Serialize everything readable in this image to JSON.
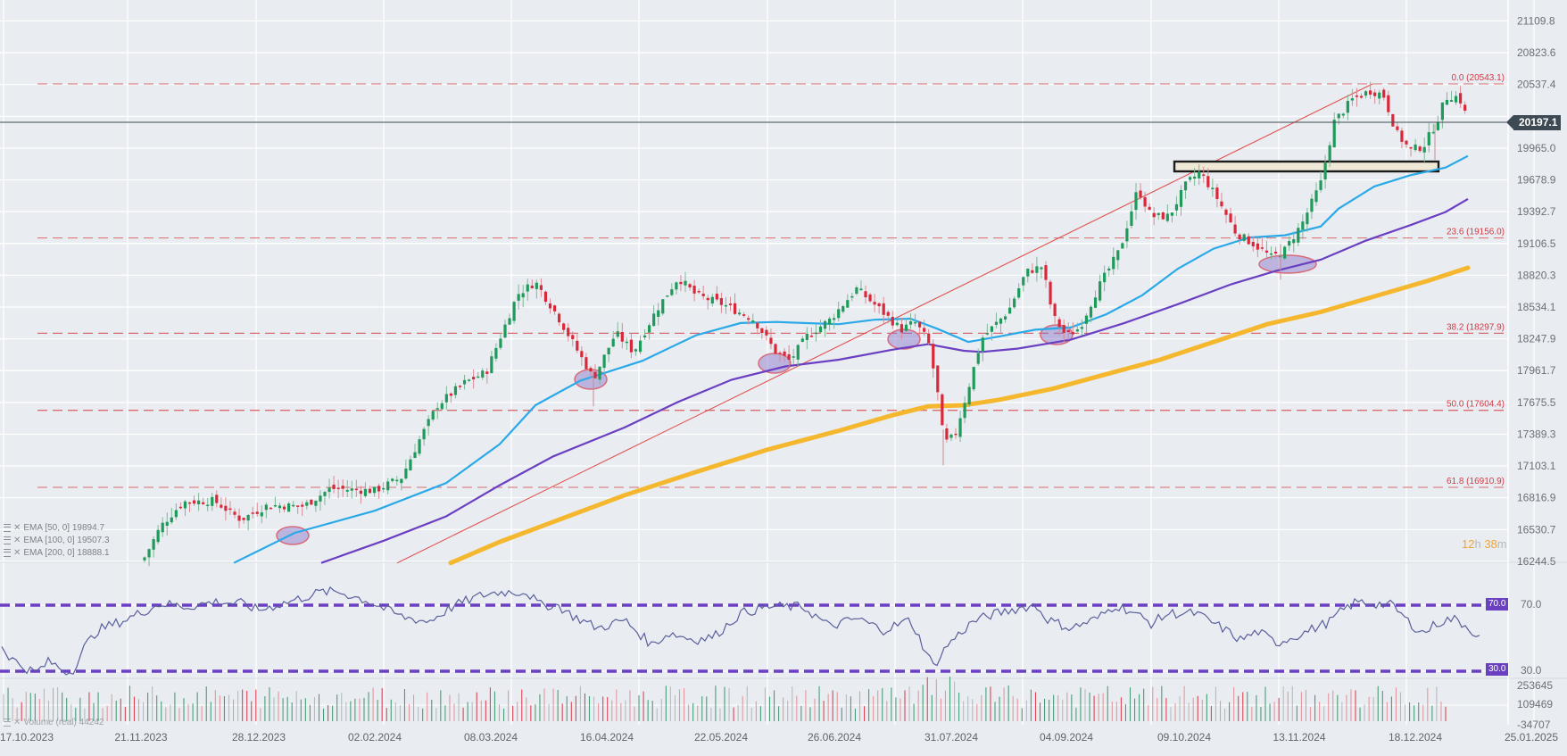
{
  "chart_data": {
    "type": "candlestick",
    "title": "",
    "panels": [
      "price",
      "rsi",
      "volume"
    ],
    "price_axis": {
      "ticks": [
        21109.8,
        20823.6,
        20537.4,
        20251.2,
        19965.0,
        19678.9,
        19392.7,
        19106.5,
        18820.3,
        18534.1,
        18247.9,
        17961.7,
        17675.5,
        17389.3,
        17103.1,
        16816.9,
        16530.7,
        16244.5
      ],
      "ylim": [
        16244.5,
        21109.8
      ]
    },
    "x_axis": {
      "ticks": [
        "17.10.2023",
        "21.11.2023",
        "28.12.2023",
        "02.02.2024",
        "08.03.2024",
        "16.04.2024",
        "22.05.2024",
        "26.06.2024",
        "31.07.2024",
        "04.09.2024",
        "09.10.2024",
        "13.11.2024",
        "18.12.2024",
        "25.01.2025"
      ],
      "xlim": [
        "17.10.2023",
        "25.01.2025"
      ]
    },
    "last_price": 20197.1,
    "fibonacci_levels": [
      {
        "level": "0.0",
        "price": 20543.1,
        "label": "0.0 (20543.1)"
      },
      {
        "level": "23.6",
        "price": 19156.0,
        "label": "23.6 (19156.0)"
      },
      {
        "level": "38.2",
        "price": 18297.9,
        "label": "38.2 (18297.9)"
      },
      {
        "level": "50.0",
        "price": 17604.4,
        "label": "50.0 (17604.4)"
      },
      {
        "level": "61.8",
        "price": 16910.9,
        "label": "61.8 (16910.9)"
      }
    ],
    "indicators": [
      {
        "name": "EMA [50, 0]",
        "value": 19894.7,
        "color": "#2aa9e8"
      },
      {
        "name": "EMA [100, 0]",
        "value": 19507.3,
        "color": "#6a3fc2"
      },
      {
        "name": "EMA [200, 0]",
        "value": 18888.1,
        "color": "#f5b72e"
      }
    ],
    "key_points": [
      {
        "date": "17.10.2023",
        "close_approx": 16300
      },
      {
        "date": "28.12.2023",
        "close_approx": 16700
      },
      {
        "date": "08.03.2024",
        "close_approx": 17950
      },
      {
        "date": "late 03.2024",
        "close_approx": 18800
      },
      {
        "date": "16.04.2024",
        "close_approx": 17850
      },
      {
        "date": "mid 05.2024",
        "close_approx": 18900
      },
      {
        "date": "early 06.2024",
        "close_approx": 18000
      },
      {
        "date": "mid 07.2024",
        "close_approx": 18750
      },
      {
        "date": "05.08.2024",
        "close_approx": 17300
      },
      {
        "date": "late 08.2024",
        "close_approx": 18950
      },
      {
        "date": "04.09.2024",
        "close_approx": 18250
      },
      {
        "date": "early 10.2024",
        "close_approx": 19650
      },
      {
        "date": "mid 11.2024",
        "close_approx": 18900
      },
      {
        "date": "early 12.2024",
        "close_approx": 20450
      },
      {
        "date": "mid 12.2024",
        "close_approx": 19900
      },
      {
        "date": "late 12.2024",
        "close_approx": 20543
      },
      {
        "date": "last",
        "close_approx": 20197.1
      }
    ],
    "annotations": [
      {
        "type": "trendline",
        "from": "late 12.2023",
        "to": "early 12.2024",
        "color": "#e0524f"
      },
      {
        "type": "rectangle",
        "label": "resistance-zone",
        "price_range": [
          19750,
          19860
        ]
      },
      {
        "type": "ellipse",
        "count": 6,
        "description": "EMA touch points"
      }
    ],
    "rsi": {
      "levels": [
        70.0,
        30.0
      ],
      "level_labels": [
        "70.0",
        "30.0"
      ]
    },
    "volume": {
      "label": "Volume (real)",
      "value": "44242",
      "ticks": [
        "253645",
        "109469",
        "-34707"
      ]
    },
    "legend_position": "bottom-left",
    "grid": true
  },
  "ui": {
    "last_price_tag": "20197.1",
    "countdown": {
      "hours": "12",
      "h": "h",
      "minutes": "38",
      "m": "m"
    },
    "rsi_tags": [
      "70.0",
      "30.0"
    ],
    "rsi_axis": [
      "70.0",
      "30.0"
    ],
    "legend": [
      {
        "label": "EMA [50, 0] 19894.7"
      },
      {
        "label": "EMA [100, 0] 19507.3"
      },
      {
        "label": "EMA [200, 0] 18888.1"
      }
    ],
    "volume_legend": "Volume (real) 44242",
    "colors": {
      "bull": "#1f9a5b",
      "bear": "#d9283a",
      "ema50": "#2aa9e8",
      "ema100": "#6a3fc2",
      "ema200": "#f5b72e",
      "fib": "#d96a6f",
      "rsi_line": "#5a5f9c",
      "rsi_level": "#6a3fc2",
      "background": "#e9edf1",
      "grid": "#ffffff"
    }
  }
}
